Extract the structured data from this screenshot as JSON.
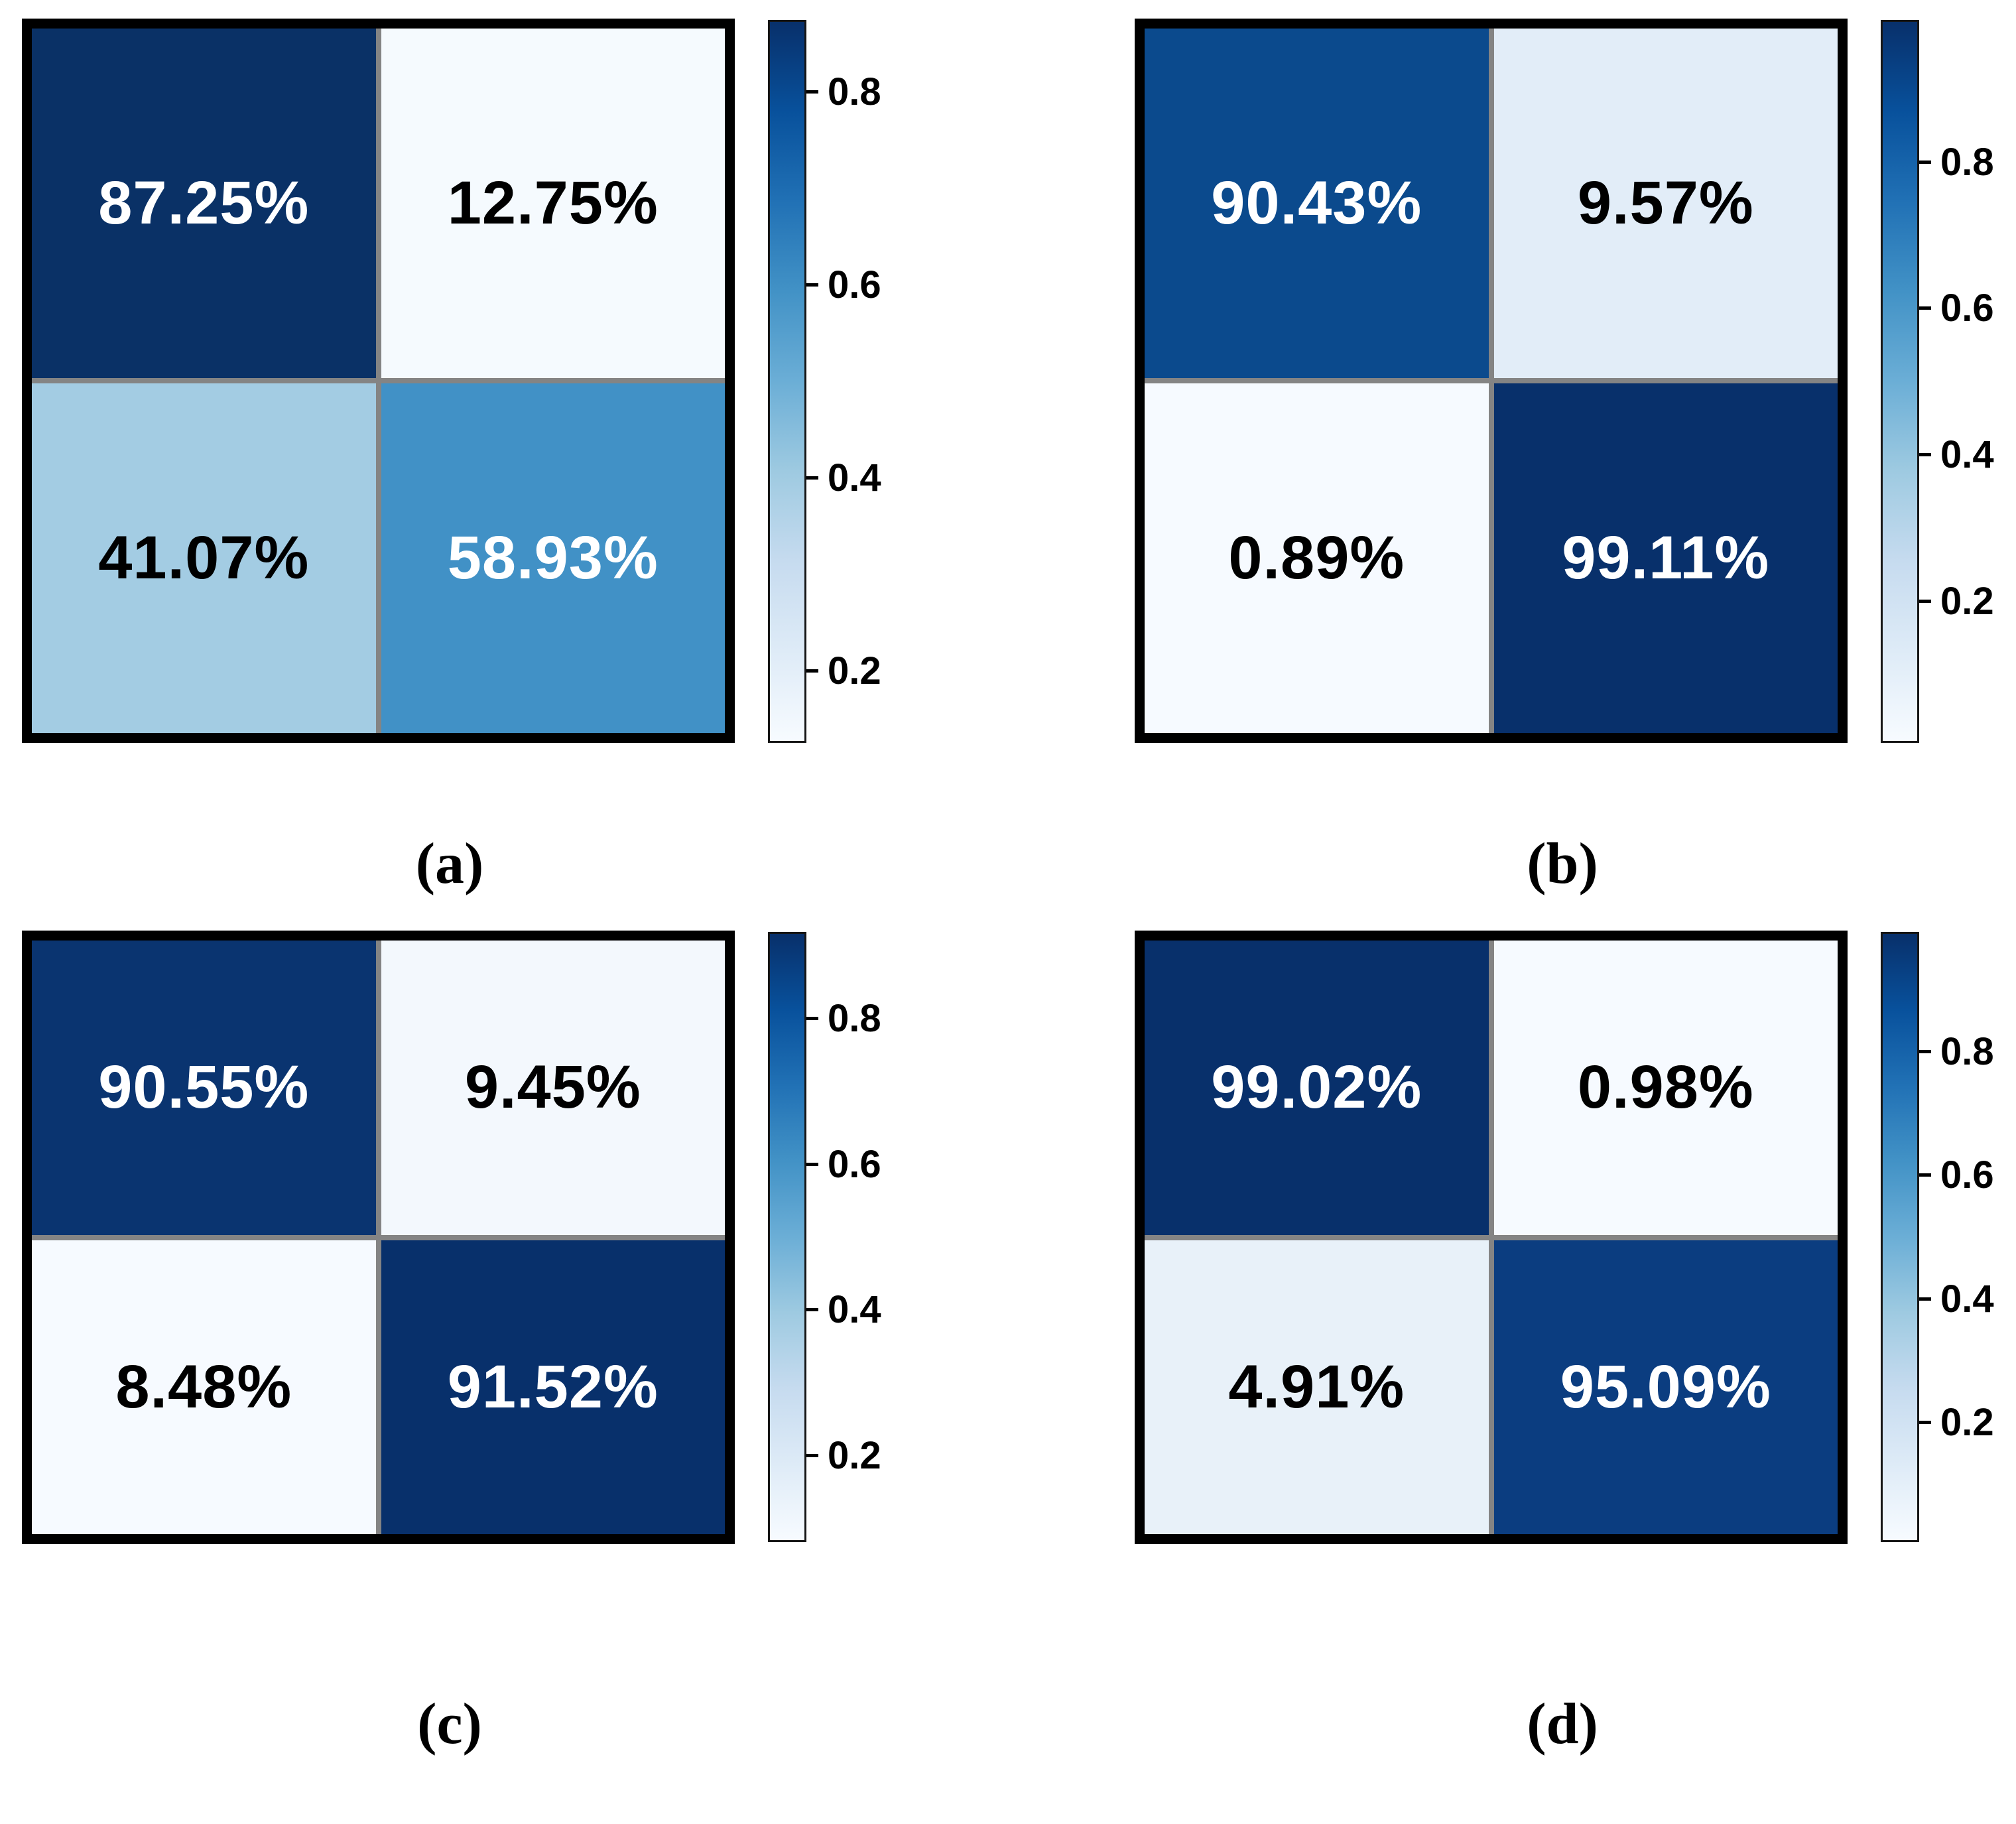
{
  "figure_type": "confusion-matrix-heatmaps",
  "colorbar_gradient": [
    "#08306b",
    "#08519c",
    "#2171b5",
    "#4292c6",
    "#6baed6",
    "#9ecae1",
    "#c6dbef",
    "#deebf7",
    "#f7fbff"
  ],
  "panels": [
    {
      "label": "(a)",
      "cells": [
        {
          "text": "87.25%",
          "bg": "#0a3166",
          "fg": "#ffffff"
        },
        {
          "text": "12.75%",
          "bg": "#f5fafe",
          "fg": "#000000"
        },
        {
          "text": "41.07%",
          "bg": "#a3cce3",
          "fg": "#000000"
        },
        {
          "text": "58.93%",
          "bg": "#4191c6",
          "fg": "#ffffff"
        }
      ],
      "ticks": [
        {
          "label": "0.8",
          "top_pct": 9.7
        },
        {
          "label": "0.6",
          "top_pct": 36.6
        },
        {
          "label": "0.4",
          "top_pct": 63.4
        },
        {
          "label": "0.2",
          "top_pct": 90.3
        }
      ]
    },
    {
      "label": "(b)",
      "cells": [
        {
          "text": "90.43%",
          "bg": "#0b4a8d",
          "fg": "#ffffff"
        },
        {
          "text": "9.57%",
          "bg": "#e2edf8",
          "fg": "#000000"
        },
        {
          "text": "0.89%",
          "bg": "#f6faff",
          "fg": "#000000"
        },
        {
          "text": "99.11%",
          "bg": "#08306b",
          "fg": "#ffffff"
        }
      ],
      "ticks": [
        {
          "label": "0.8",
          "top_pct": 19.5
        },
        {
          "label": "0.6",
          "top_pct": 39.8
        },
        {
          "label": "0.4",
          "top_pct": 60.2
        },
        {
          "label": "0.2",
          "top_pct": 80.6
        }
      ]
    },
    {
      "label": "(c)",
      "cells": [
        {
          "text": "90.55%",
          "bg": "#0a3470",
          "fg": "#ffffff"
        },
        {
          "text": "9.45%",
          "bg": "#f3f8fd",
          "fg": "#000000"
        },
        {
          "text": "8.48%",
          "bg": "#f6faff",
          "fg": "#000000"
        },
        {
          "text": "91.52%",
          "bg": "#08306b",
          "fg": "#ffffff"
        }
      ],
      "ticks": [
        {
          "label": "0.8",
          "top_pct": 13.9
        },
        {
          "label": "0.6",
          "top_pct": 38.0
        },
        {
          "label": "0.4",
          "top_pct": 62.0
        },
        {
          "label": "0.2",
          "top_pct": 86.1
        }
      ]
    },
    {
      "label": "(d)",
      "cells": [
        {
          "text": "99.02%",
          "bg": "#08306b",
          "fg": "#ffffff"
        },
        {
          "text": "0.98%",
          "bg": "#f6faff",
          "fg": "#000000"
        },
        {
          "text": "4.91%",
          "bg": "#e8f1f9",
          "fg": "#000000"
        },
        {
          "text": "95.09%",
          "bg": "#0b3d80",
          "fg": "#ffffff"
        }
      ],
      "ticks": [
        {
          "label": "0.8",
          "top_pct": 19.4
        },
        {
          "label": "0.6",
          "top_pct": 39.8
        },
        {
          "label": "0.4",
          "top_pct": 60.2
        },
        {
          "label": "0.2",
          "top_pct": 80.6
        }
      ]
    }
  ],
  "chart_data": [
    {
      "type": "heatmap",
      "panel": "(a)",
      "rows": 2,
      "cols": 2,
      "values_percent": [
        [
          87.25,
          12.75
        ],
        [
          41.07,
          58.93
        ]
      ],
      "colormap": "Blues",
      "colorbar_ticks": [
        0.8,
        0.6,
        0.4,
        0.2
      ],
      "colorbar_range": [
        0.1275,
        0.8725
      ],
      "legend_position": "right"
    },
    {
      "type": "heatmap",
      "panel": "(b)",
      "rows": 2,
      "cols": 2,
      "values_percent": [
        [
          90.43,
          9.57
        ],
        [
          0.89,
          99.11
        ]
      ],
      "colormap": "Blues",
      "colorbar_ticks": [
        0.8,
        0.6,
        0.4,
        0.2
      ],
      "colorbar_range": [
        0.0089,
        0.9911
      ],
      "legend_position": "right"
    },
    {
      "type": "heatmap",
      "panel": "(c)",
      "rows": 2,
      "cols": 2,
      "values_percent": [
        [
          90.55,
          9.45
        ],
        [
          8.48,
          91.52
        ]
      ],
      "colormap": "Blues",
      "colorbar_ticks": [
        0.8,
        0.6,
        0.4,
        0.2
      ],
      "colorbar_range": [
        0.0848,
        0.9152
      ],
      "legend_position": "right"
    },
    {
      "type": "heatmap",
      "panel": "(d)",
      "rows": 2,
      "cols": 2,
      "values_percent": [
        [
          99.02,
          0.98
        ],
        [
          4.91,
          95.09
        ]
      ],
      "colormap": "Blues",
      "colorbar_ticks": [
        0.8,
        0.6,
        0.4,
        0.2
      ],
      "colorbar_range": [
        0.0098,
        0.9902
      ],
      "legend_position": "right"
    }
  ]
}
